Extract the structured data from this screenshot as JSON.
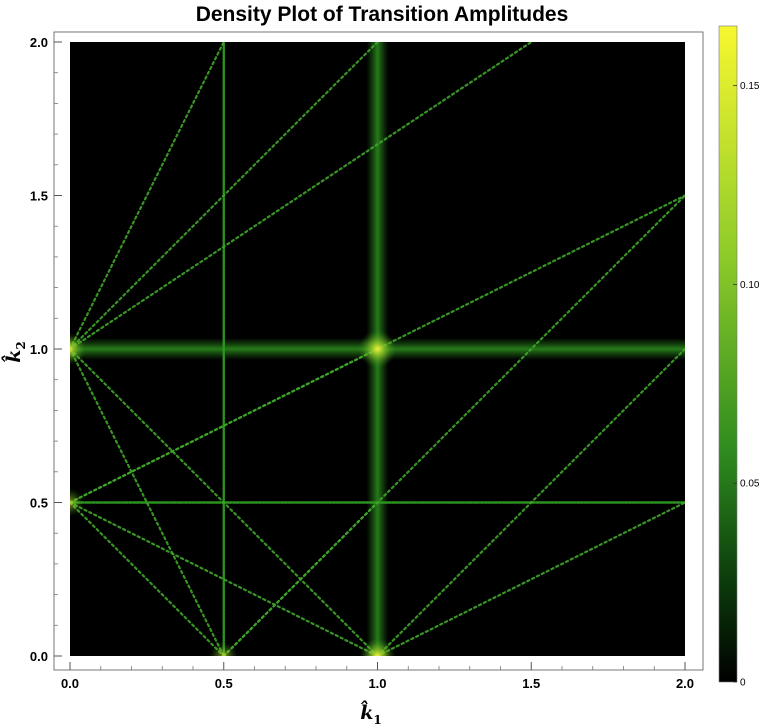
{
  "chart_data": {
    "type": "heatmap",
    "title": "Density Plot of Transition Amplitudes",
    "xlabel": "k̂",
    "xlabel_sub": "1",
    "ylabel": "k̂",
    "ylabel_sub": "2",
    "xlim": [
      0,
      2
    ],
    "ylim": [
      0,
      2
    ],
    "x_ticks": [
      "0.0",
      "0.5",
      "1.0",
      "1.5",
      "2.0"
    ],
    "y_ticks": [
      "0.0",
      "0.5",
      "1.0",
      "1.5",
      "2.0"
    ],
    "x_tick_values": [
      0,
      0.5,
      1,
      1.5,
      2
    ],
    "y_tick_values": [
      0,
      0.5,
      1,
      1.5,
      2
    ],
    "colorbar": {
      "range": [
        0,
        0.165
      ],
      "ticks": [
        "0",
        "0.05",
        "0.10",
        "0.15"
      ],
      "tick_values": [
        0,
        0.05,
        0.1,
        0.15
      ],
      "colors": [
        "#000000",
        "#0b3a0b",
        "#2e8b1e",
        "#8ecb2a",
        "#f7f72f"
      ]
    },
    "background_value": 0.0,
    "broad_bands": [
      {
        "orientation": "vertical",
        "center": 1.0,
        "width": 0.06,
        "peak": 0.06
      },
      {
        "orientation": "horizontal",
        "center": 1.0,
        "width": 0.06,
        "peak": 0.06
      }
    ],
    "line_features": [
      {
        "from": [
          0.5,
          0
        ],
        "to": [
          0.5,
          2
        ],
        "value": 0.05
      },
      {
        "from": [
          0,
          0.5
        ],
        "to": [
          2,
          0.5
        ],
        "value": 0.05
      },
      {
        "from": [
          0,
          1
        ],
        "to": [
          0.5,
          2
        ],
        "value": 0.04
      },
      {
        "from": [
          0,
          1
        ],
        "to": [
          1,
          2
        ],
        "value": 0.04
      },
      {
        "from": [
          0,
          1
        ],
        "to": [
          1.5,
          2
        ],
        "value": 0.04
      },
      {
        "from": [
          0,
          0.5
        ],
        "to": [
          2,
          1.5
        ],
        "value": 0.04
      },
      {
        "from": [
          0,
          0.5
        ],
        "to": [
          1,
          1
        ],
        "value": 0.04
      },
      {
        "from": [
          0.5,
          0
        ],
        "to": [
          2,
          1.5
        ],
        "value": 0.04
      },
      {
        "from": [
          1,
          0
        ],
        "to": [
          2,
          1
        ],
        "value": 0.04
      },
      {
        "from": [
          0,
          1
        ],
        "to": [
          1,
          0
        ],
        "value": 0.04
      },
      {
        "from": [
          0,
          1
        ],
        "to": [
          0.5,
          0
        ],
        "value": 0.04
      },
      {
        "from": [
          0,
          0.5
        ],
        "to": [
          0.5,
          0
        ],
        "value": 0.04
      },
      {
        "from": [
          0,
          0.5
        ],
        "to": [
          1,
          0
        ],
        "value": 0.04
      },
      {
        "from": [
          0.5,
          0
        ],
        "to": [
          1,
          0.5
        ],
        "value": 0.04
      },
      {
        "from": [
          1,
          0
        ],
        "to": [
          2,
          0.5
        ],
        "value": 0.04
      }
    ],
    "hot_spots": [
      {
        "x": 1.0,
        "y": 1.0,
        "value": 0.15
      },
      {
        "x": 1.0,
        "y": 0.0,
        "value": 0.13
      },
      {
        "x": 0.0,
        "y": 1.0,
        "value": 0.1
      },
      {
        "x": 0.0,
        "y": 0.5,
        "value": 0.07
      },
      {
        "x": 0.5,
        "y": 0.0,
        "value": 0.07
      }
    ]
  }
}
